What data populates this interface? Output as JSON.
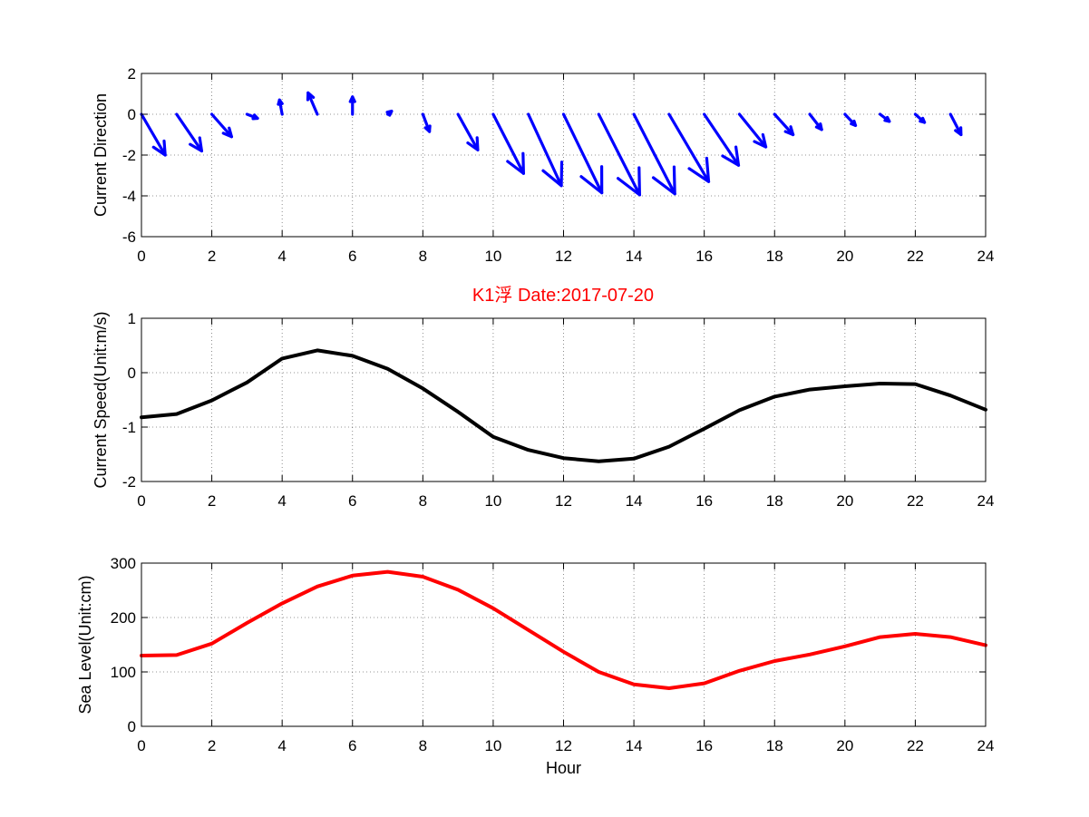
{
  "title": {
    "text": "K1浮    Date:2017-07-20",
    "color": "#ff0000"
  },
  "chart_data": [
    {
      "type": "quiver",
      "ylabel": "Current Direction",
      "xlim": [
        0,
        24
      ],
      "ylim": [
        -6,
        2
      ],
      "xticks": [
        0,
        2,
        4,
        6,
        8,
        10,
        12,
        14,
        16,
        18,
        20,
        22,
        24
      ],
      "yticks": [
        -6,
        -4,
        -2,
        0,
        2
      ],
      "grid": true,
      "color": "#0000ff",
      "arrows": [
        {
          "x": 0,
          "u": 0.9,
          "v": -2.0
        },
        {
          "x": 1,
          "u": 0.95,
          "v": -1.8
        },
        {
          "x": 2,
          "u": 0.75,
          "v": -1.1
        },
        {
          "x": 3,
          "u": 0.4,
          "v": -0.2
        },
        {
          "x": 4,
          "u": -0.1,
          "v": 0.7
        },
        {
          "x": 5,
          "u": -0.35,
          "v": 1.05
        },
        {
          "x": 6,
          "u": 0.0,
          "v": 0.85
        },
        {
          "x": 7,
          "u": 0.15,
          "v": 0.15
        },
        {
          "x": 8,
          "u": 0.25,
          "v": -0.85
        },
        {
          "x": 9,
          "u": 0.75,
          "v": -1.75
        },
        {
          "x": 10,
          "u": 1.15,
          "v": -2.9
        },
        {
          "x": 11,
          "u": 1.25,
          "v": -3.5
        },
        {
          "x": 12,
          "u": 1.45,
          "v": -3.85
        },
        {
          "x": 13,
          "u": 1.55,
          "v": -3.95
        },
        {
          "x": 14,
          "u": 1.55,
          "v": -3.9
        },
        {
          "x": 15,
          "u": 1.5,
          "v": -3.3
        },
        {
          "x": 16,
          "u": 1.3,
          "v": -2.5
        },
        {
          "x": 17,
          "u": 1.0,
          "v": -1.6
        },
        {
          "x": 18,
          "u": 0.7,
          "v": -1.0
        },
        {
          "x": 19,
          "u": 0.45,
          "v": -0.75
        },
        {
          "x": 20,
          "u": 0.4,
          "v": -0.55
        },
        {
          "x": 21,
          "u": 0.35,
          "v": -0.35
        },
        {
          "x": 22,
          "u": 0.35,
          "v": -0.4
        },
        {
          "x": 23,
          "u": 0.4,
          "v": -1.0
        }
      ]
    },
    {
      "type": "line",
      "ylabel": "Current Speed(Unit:m/s)",
      "xlim": [
        0,
        24
      ],
      "ylim": [
        -2,
        1
      ],
      "xticks": [
        0,
        2,
        4,
        6,
        8,
        10,
        12,
        14,
        16,
        18,
        20,
        22,
        24
      ],
      "yticks": [
        -2,
        -1,
        0,
        1
      ],
      "grid": true,
      "color": "#000000",
      "x": [
        0,
        1,
        2,
        3,
        4,
        5,
        6,
        7,
        8,
        9,
        10,
        11,
        12,
        13,
        14,
        15,
        16,
        17,
        18,
        19,
        20,
        21,
        22,
        23,
        24
      ],
      "y": [
        -0.82,
        -0.76,
        -0.51,
        -0.18,
        0.26,
        0.41,
        0.31,
        0.07,
        -0.29,
        -0.72,
        -1.18,
        -1.42,
        -1.57,
        -1.63,
        -1.58,
        -1.36,
        -1.03,
        -0.69,
        -0.44,
        -0.31,
        -0.25,
        -0.2,
        -0.21,
        -0.42,
        -0.68
      ]
    },
    {
      "type": "line",
      "ylabel": "Sea Level(Unit:cm)",
      "xlabel": "Hour",
      "xlim": [
        0,
        24
      ],
      "ylim": [
        0,
        300
      ],
      "xticks": [
        0,
        2,
        4,
        6,
        8,
        10,
        12,
        14,
        16,
        18,
        20,
        22,
        24
      ],
      "yticks": [
        0,
        100,
        200,
        300
      ],
      "grid": true,
      "color": "#ff0000",
      "x": [
        0,
        1,
        2,
        3,
        4,
        5,
        6,
        7,
        8,
        9,
        10,
        11,
        12,
        13,
        14,
        15,
        16,
        17,
        18,
        19,
        20,
        21,
        22,
        23,
        24
      ],
      "y": [
        130,
        131,
        152,
        190,
        226,
        257,
        277,
        284,
        275,
        251,
        217,
        177,
        137,
        100,
        77,
        70,
        79,
        102,
        120,
        132,
        147,
        164,
        170,
        164,
        149
      ]
    }
  ]
}
